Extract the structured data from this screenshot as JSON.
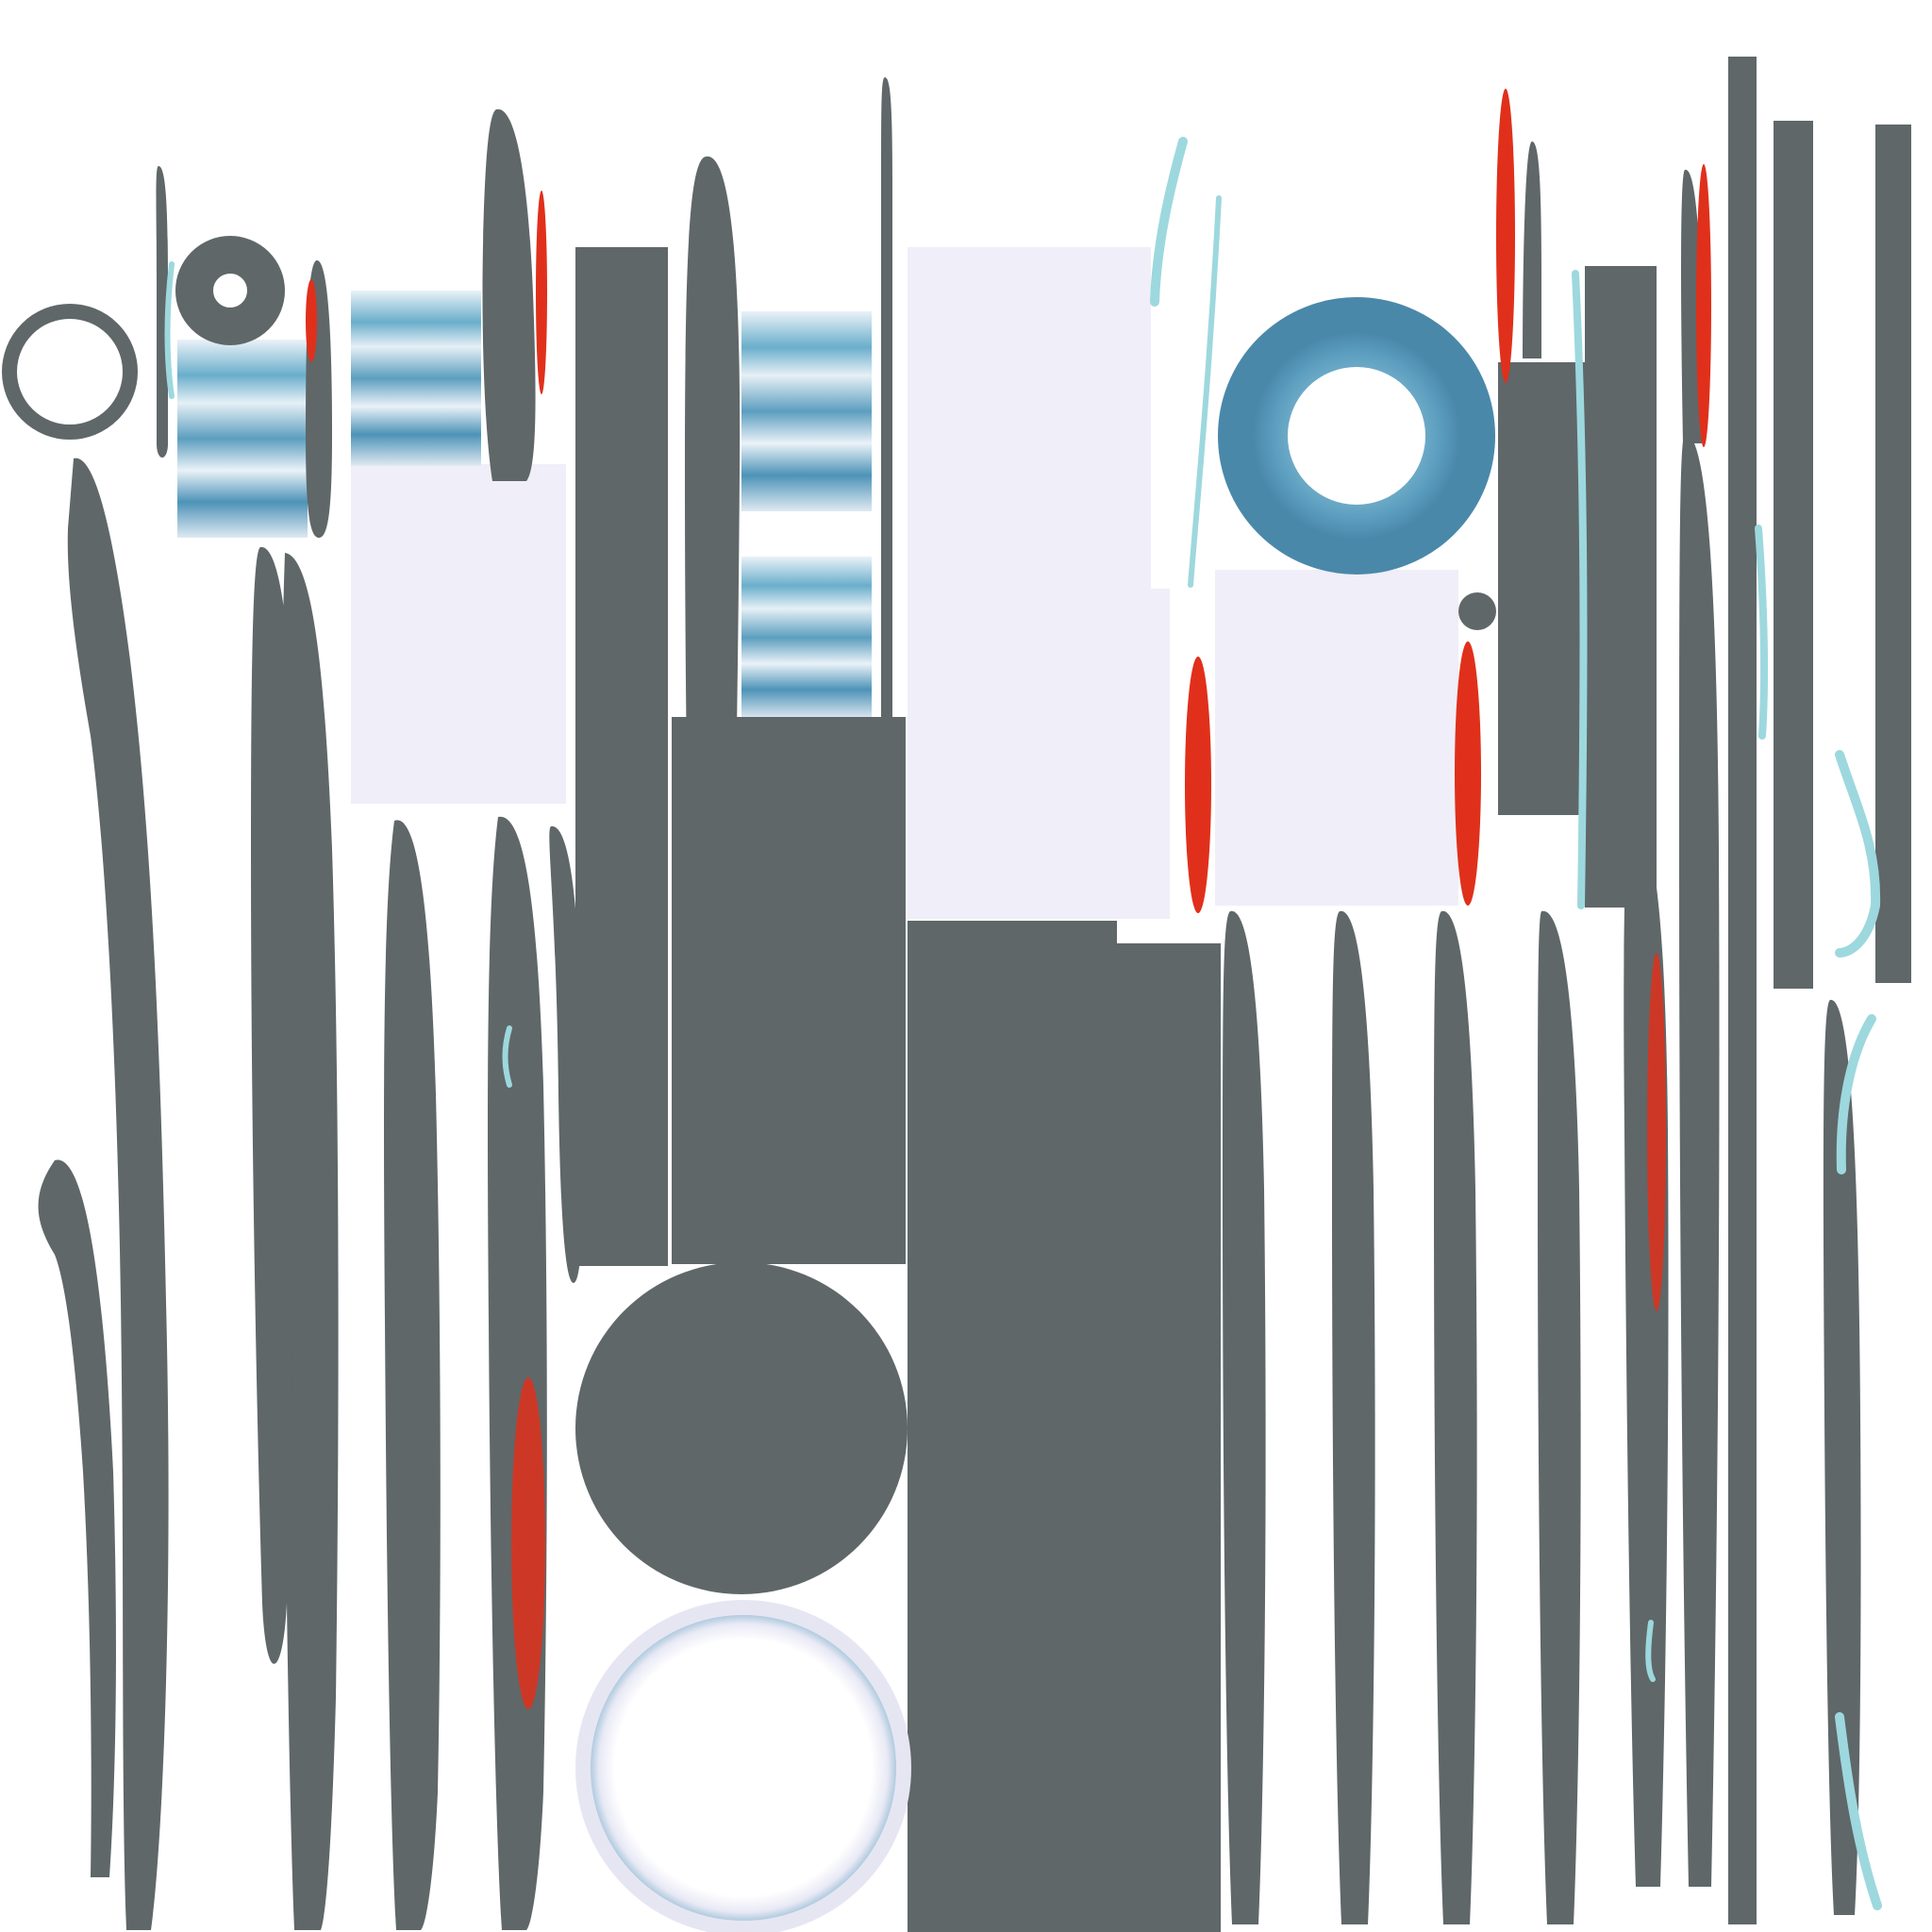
{
  "texture_atlas": {
    "palette": {
      "background": "#ffffff",
      "slate_gray": "#5f6769",
      "lavender_white": "#f0eef8",
      "steel_blue": "#5c9ebf",
      "pale_cyan": "#9dd8de",
      "signal_red": "#e0301b"
    }
  }
}
